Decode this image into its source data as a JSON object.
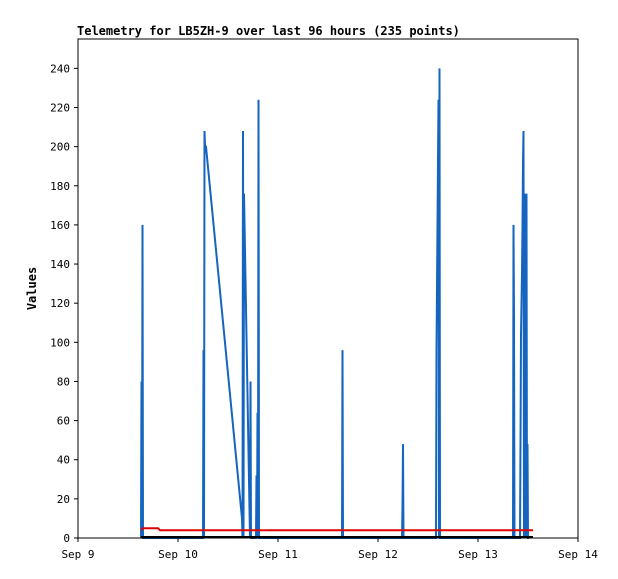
{
  "chart_data": {
    "type": "line",
    "title": "Telemetry for LB5ZH-9 over last 96 hours (235 points)",
    "xlabel": "",
    "ylabel": "Values",
    "x_ticks": [
      "Sep 9",
      "Sep 10",
      "Sep 11",
      "Sep 12",
      "Sep 13",
      "Sep 14"
    ],
    "xlim": [
      9,
      14
    ],
    "y_ticks": [
      0,
      20,
      40,
      60,
      80,
      100,
      120,
      140,
      160,
      180,
      200,
      220,
      240
    ],
    "ylim": [
      0,
      255
    ],
    "grid": false,
    "legend": "none",
    "series": [
      {
        "color": "#1565c0",
        "x": [
          9.63,
          9.635,
          9.64,
          9.645,
          9.65,
          9.655,
          9.66,
          10.25,
          10.255,
          10.26,
          10.265,
          10.27,
          10.28,
          10.64,
          10.645,
          10.65,
          10.655,
          10.66,
          10.72,
          10.725,
          10.73,
          10.78,
          10.785,
          10.79,
          10.795,
          10.8,
          10.805,
          10.81,
          11.64,
          11.645,
          11.65,
          12.24,
          12.245,
          12.25,
          12.255,
          12.58,
          12.585,
          12.59,
          12.595,
          12.6,
          12.605,
          12.61,
          12.615,
          12.62,
          12.625,
          12.63,
          13.35,
          13.355,
          13.36,
          13.365,
          13.37,
          13.42,
          13.425,
          13.43,
          13.44,
          13.445,
          13.45,
          13.455,
          13.46,
          13.465,
          13.47,
          13.475,
          13.48,
          13.485,
          13.49,
          13.495,
          13.5,
          13.505,
          13.51
        ],
        "y": [
          0,
          80,
          0,
          160,
          0,
          0,
          0,
          0,
          96,
          0,
          208,
          200,
          200,
          10,
          0,
          208,
          0,
          176,
          0,
          80,
          0,
          0,
          32,
          0,
          64,
          0,
          224,
          0,
          0,
          96,
          0,
          0,
          16,
          48,
          0,
          0,
          96,
          128,
          160,
          192,
          224,
          0,
          240,
          0,
          0,
          0,
          0,
          160,
          112,
          0,
          0,
          0,
          48,
          104,
          136,
          160,
          192,
          208,
          0,
          176,
          48,
          0,
          128,
          176,
          0,
          48,
          0,
          0,
          0
        ]
      },
      {
        "color": "#e00000",
        "x": [
          9.63,
          9.65,
          9.8,
          9.82,
          13.55
        ],
        "y": [
          4,
          5,
          5,
          4,
          4
        ]
      },
      {
        "color": "#000000",
        "x": [
          9.63,
          13.55
        ],
        "y": [
          0.5,
          0.5
        ]
      }
    ]
  }
}
